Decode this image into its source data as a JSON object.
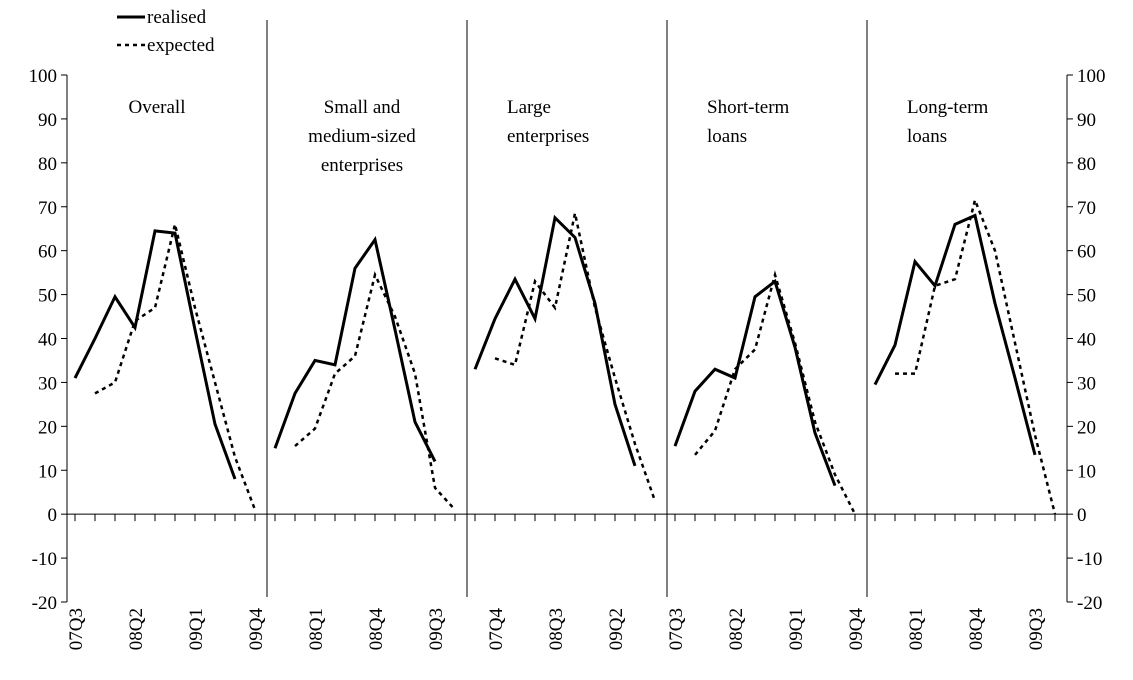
{
  "chart_data": [
    {
      "type": "line",
      "title": [
        "Overall"
      ],
      "categories": [
        "07Q3",
        null,
        null,
        "08Q2",
        null,
        null,
        "09Q1",
        null,
        null,
        "09Q4"
      ],
      "series": [
        {
          "name": "realised",
          "color": "#000000",
          "style": "solid",
          "values": [
            31,
            40,
            49.5,
            42.5,
            64.5,
            64,
            42,
            20.5,
            8,
            null
          ]
        },
        {
          "name": "expected",
          "color": "#000000",
          "style": "dotted",
          "values": [
            null,
            27.5,
            30,
            44,
            47,
            66,
            47,
            30,
            13,
            1
          ]
        }
      ],
      "ylim": [
        -20,
        100
      ],
      "yticks": [
        -20,
        -10,
        0,
        10,
        20,
        30,
        40,
        50,
        60,
        70,
        80,
        90,
        100
      ]
    },
    {
      "type": "line",
      "title": [
        "Small and",
        "medium-sized",
        "enterprises"
      ],
      "categories": [
        null,
        null,
        "08Q1",
        null,
        null,
        "08Q4",
        null,
        null,
        "09Q3",
        null
      ],
      "series": [
        {
          "color": "#000000",
          "style": "solid",
          "values": [
            15,
            27.5,
            35,
            34,
            56,
            62.5,
            42,
            21,
            12,
            null
          ]
        },
        {
          "color": "#000000",
          "style": "dotted",
          "values": [
            null,
            15.5,
            19.5,
            32,
            36,
            54.5,
            45,
            32,
            6,
            1
          ]
        }
      ],
      "ylim": [
        -20,
        100
      ]
    },
    {
      "type": "line",
      "title": [
        "Large",
        "enterprises"
      ],
      "categories": [
        null,
        "07Q4",
        null,
        null,
        "08Q3",
        null,
        null,
        "09Q2",
        null,
        null
      ],
      "series": [
        {
          "color": "#000000",
          "style": "solid",
          "values": [
            33,
            44.5,
            53.5,
            44.5,
            67.5,
            63,
            48,
            25,
            11,
            null
          ]
        },
        {
          "color": "#000000",
          "style": "dotted",
          "values": [
            null,
            35.5,
            34,
            53,
            47,
            68.5,
            47,
            31,
            16,
            3
          ]
        }
      ],
      "ylim": [
        -20,
        100
      ]
    },
    {
      "type": "line",
      "title": [
        "Short-term",
        "loans"
      ],
      "categories": [
        "07Q3",
        null,
        null,
        "08Q2",
        null,
        null,
        "09Q1",
        null,
        null,
        "09Q4"
      ],
      "series": [
        {
          "color": "#000000",
          "style": "solid",
          "values": [
            15.5,
            28,
            33,
            31,
            49.5,
            53,
            38,
            18.5,
            6.5,
            null
          ]
        },
        {
          "color": "#000000",
          "style": "dotted",
          "values": [
            null,
            13.5,
            19,
            33,
            37.5,
            54.5,
            39,
            21,
            9,
            0
          ]
        }
      ],
      "ylim": [
        -20,
        100
      ]
    },
    {
      "type": "line",
      "title": [
        "Long-term",
        "loans"
      ],
      "categories": [
        null,
        null,
        "08Q1",
        null,
        null,
        "08Q4",
        null,
        null,
        "09Q3",
        null
      ],
      "series": [
        {
          "color": "#000000",
          "style": "solid",
          "values": [
            29.5,
            38.5,
            57.5,
            52,
            66,
            68,
            48,
            31,
            13.5,
            null
          ]
        },
        {
          "color": "#000000",
          "style": "dotted",
          "values": [
            null,
            32,
            32,
            52,
            53.5,
            71.5,
            60,
            39,
            18,
            0
          ]
        }
      ],
      "ylim": [
        -20,
        100
      ],
      "yticks": [
        -20,
        -10,
        0,
        10,
        20,
        30,
        40,
        50,
        60,
        70,
        80,
        90,
        100
      ]
    }
  ]
}
